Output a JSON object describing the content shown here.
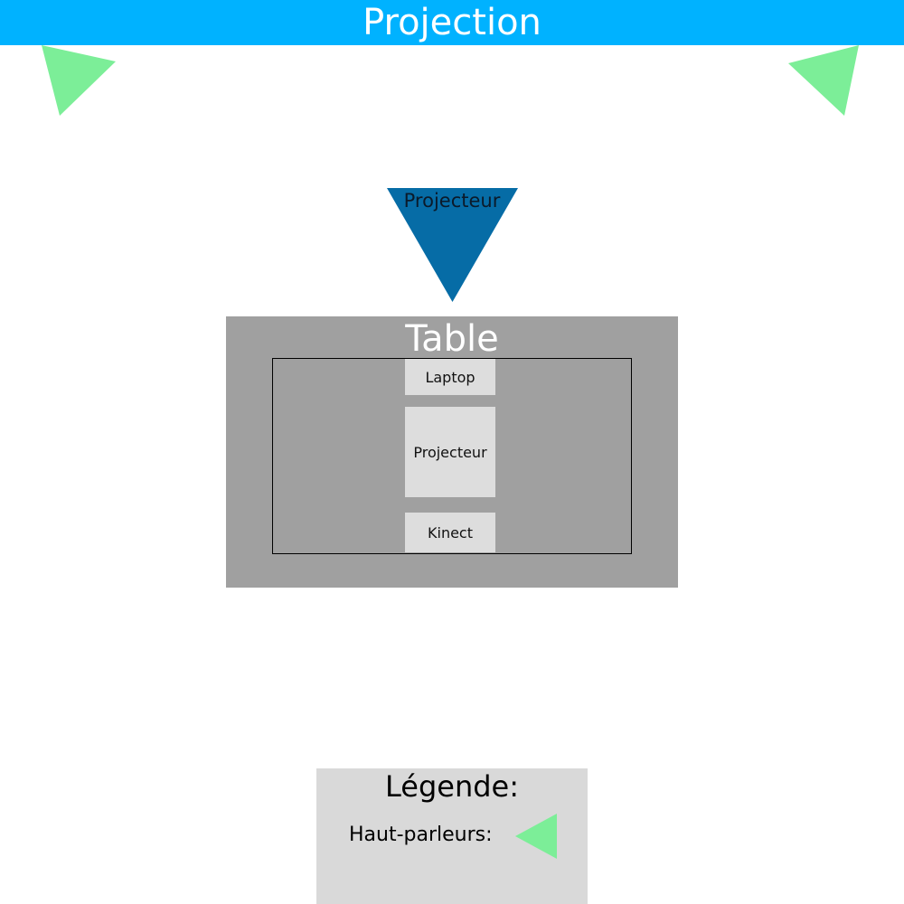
{
  "banner": {
    "title": "Projection"
  },
  "projector": {
    "label": "Projecteur"
  },
  "table": {
    "title": "Table",
    "devices": {
      "laptop": "Laptop",
      "projector": "Projecteur",
      "kinect": "Kinect"
    }
  },
  "legend": {
    "title": "Légende:",
    "speakers_label": "Haut-parleurs:"
  },
  "colors": {
    "banner": "#00B2FF",
    "speaker": "#7CEE98",
    "projector": "#066CA6",
    "table": "#A0A0A0",
    "device_box": "#DDDDDD",
    "legend_box": "#D9D9D9"
  },
  "icons": {
    "speaker": "speaker-triangle-icon",
    "projector": "projector-triangle-icon"
  }
}
